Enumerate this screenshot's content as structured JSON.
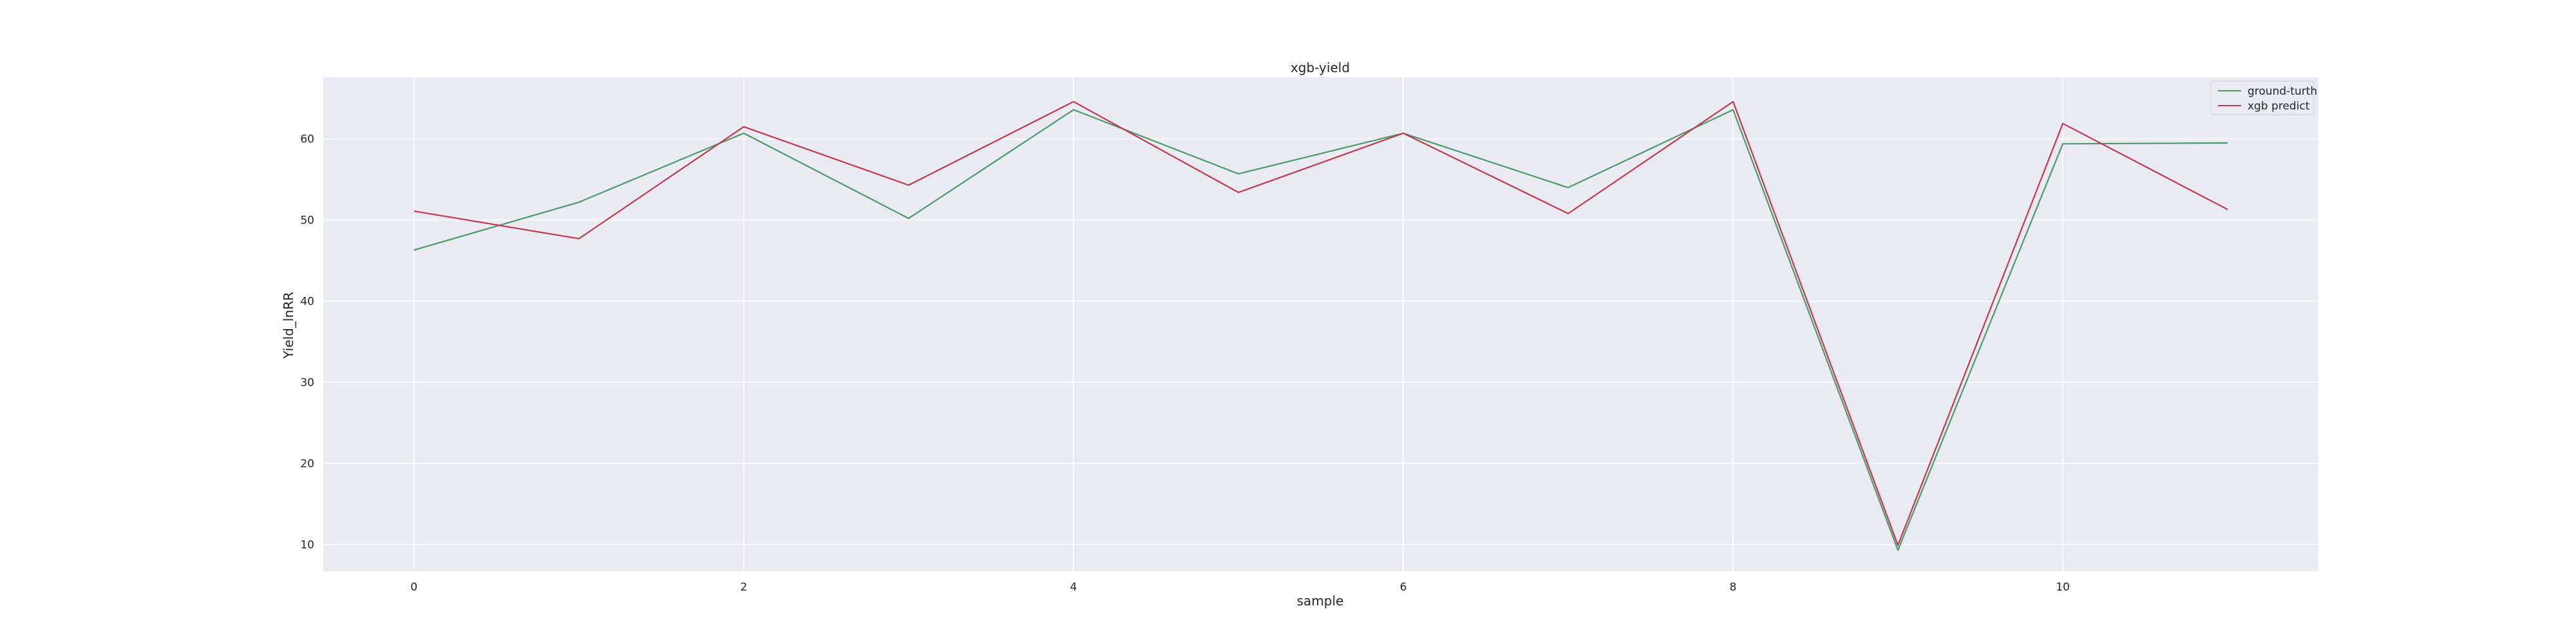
{
  "chart_data": {
    "type": "line",
    "title": "xgb-yield",
    "xlabel": "sample",
    "ylabel": "Yield_lnRR",
    "xlim": [
      -0.55,
      11.55
    ],
    "ylim": [
      6.7,
      67.6
    ],
    "xticks": [
      0,
      2,
      4,
      6,
      8,
      10
    ],
    "yticks": [
      10,
      20,
      30,
      40,
      50,
      60
    ],
    "grid": true,
    "legend_position": "top-right",
    "x": [
      0,
      1,
      2,
      3,
      4,
      5,
      6,
      7,
      8,
      9,
      10,
      11
    ],
    "series": [
      {
        "name": "ground-turth",
        "color": "#4a9a6a",
        "values": [
          46.3,
          52.2,
          60.7,
          50.2,
          63.6,
          55.7,
          60.7,
          54.0,
          63.6,
          9.3,
          59.4,
          59.5
        ]
      },
      {
        "name": "xgb predict",
        "color": "#c0394f",
        "values": [
          51.1,
          47.7,
          61.5,
          54.3,
          64.6,
          53.4,
          60.7,
          50.8,
          64.6,
          9.9,
          61.9,
          51.3
        ]
      }
    ],
    "colors": {
      "plot_background": "#eaeaf2",
      "grid": "#ffffff",
      "text": "#262626"
    }
  }
}
